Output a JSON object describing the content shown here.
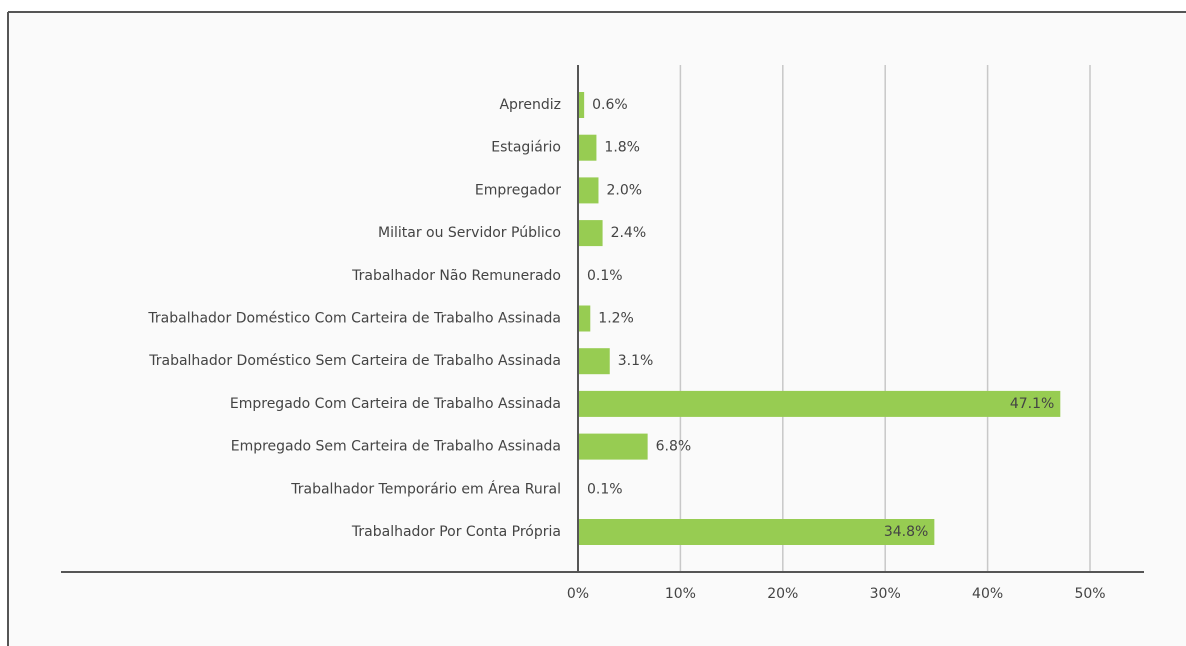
{
  "chart_data": {
    "type": "bar",
    "orientation": "horizontal",
    "categories": [
      "Aprendiz",
      "Estagiário",
      "Empregador",
      "Militar ou Servidor Público",
      "Trabalhador Não Remunerado",
      "Trabalhador Doméstico Com Carteira de Trabalho Assinada",
      "Trabalhador Doméstico Sem Carteira de Trabalho Assinada",
      "Empregado Com Carteira de Trabalho Assinada",
      "Empregado Sem Carteira de Trabalho Assinada",
      "Trabalhador Temporário em Área Rural",
      "Trabalhador Por Conta Própria"
    ],
    "values": [
      0.6,
      1.8,
      2.0,
      2.4,
      0.1,
      1.2,
      3.1,
      47.1,
      6.8,
      0.1,
      34.8
    ],
    "value_labels": [
      "0.6%",
      "1.8%",
      "2.0%",
      "2.4%",
      "0.1%",
      "1.2%",
      "3.1%",
      "47.1%",
      "6.8%",
      "0.1%",
      "34.8%"
    ],
    "color": "#97cc52",
    "xlim": [
      0,
      55
    ],
    "xticks": [
      {
        "value": 0,
        "label": "0%"
      },
      {
        "value": 10,
        "label": "10%"
      },
      {
        "value": 20,
        "label": "20%"
      },
      {
        "value": 30,
        "label": "30%"
      },
      {
        "value": 40,
        "label": "40%"
      },
      {
        "value": 50,
        "label": "50%"
      }
    ],
    "grid": true
  }
}
